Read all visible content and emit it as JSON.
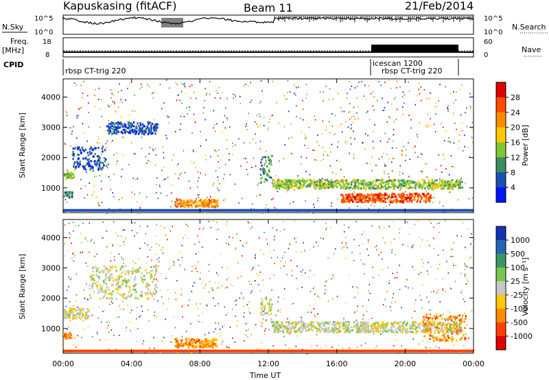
{
  "header": {
    "station": "Kapuskasing (fitACF)",
    "beam": "Beam 11",
    "date": "21/Feb/2014"
  },
  "panels": {
    "nsky": {
      "label": "N.Sky",
      "ticks_left": [
        "10^5",
        "10^0"
      ],
      "right_label": "N.Search",
      "ticks_right": [
        "10^5",
        "10^0"
      ]
    },
    "freq": {
      "label_top": "Freq.",
      "label_bottom": "[MHz]",
      "ticks_left": [
        "18",
        "8"
      ],
      "right_label": "Nave",
      "ticks_right": [
        "60",
        "0"
      ]
    },
    "cpid": {
      "label": "CPID",
      "segments": [
        {
          "text": "rbsp CT-trig 220",
          "start_h": 0,
          "end_h": 18.2
        },
        {
          "text": "icescan 1200",
          "start_h": 18.2,
          "end_h": 23.0
        },
        {
          "text": "rbsp CT-trig 220",
          "start_h": 18.2,
          "end_h": 23.0
        }
      ]
    }
  },
  "colorbars": {
    "power": {
      "title": "Power [dB]",
      "labels": [
        "28",
        "24",
        "20",
        "16",
        "12",
        "8",
        "4"
      ],
      "colors": [
        "#e00000",
        "#ff4a00",
        "#ff8c00",
        "#ffc800",
        "#7fc832",
        "#3c8c64",
        "#1e50b4",
        "#0014ff"
      ]
    },
    "velocity": {
      "title": "Velocity [m s⁻¹]",
      "labels": [
        "1000",
        "500",
        "100",
        "25",
        "-25",
        "-100",
        "-500",
        "-1000"
      ],
      "colors": [
        "#1432b4",
        "#2864b4",
        "#3c9664",
        "#78c850",
        "#c8c8c8",
        "#ffc800",
        "#ff8c00",
        "#ff4000",
        "#e00000"
      ]
    }
  },
  "chart_data": [
    {
      "type": "heatmap",
      "name": "power",
      "ylabel": "Slant Range [km]",
      "ylim": [
        180,
        4600
      ],
      "yticks": [
        1000,
        2000,
        3000,
        4000
      ],
      "xlim": [
        0,
        24
      ],
      "xticks": [
        "00:00",
        "04:00",
        "08:00",
        "12:00",
        "16:00",
        "20:00",
        "00:00"
      ],
      "features": [
        {
          "t0": 0.0,
          "t1": 0.5,
          "r0": 700,
          "r1": 900,
          "level": 5
        },
        {
          "t0": 0.0,
          "t1": 0.6,
          "r0": 1350,
          "r1": 1550,
          "level": 4
        },
        {
          "t0": 0.5,
          "t1": 2.5,
          "r0": 1600,
          "r1": 2400,
          "level": 6
        },
        {
          "t0": 2.5,
          "t1": 5.5,
          "r0": 2800,
          "r1": 3200,
          "level": 6
        },
        {
          "t0": 6.5,
          "t1": 9.0,
          "r0": 400,
          "r1": 650,
          "level": 2
        },
        {
          "t0": 11.5,
          "t1": 12.2,
          "r0": 1200,
          "r1": 2100,
          "level": 5
        },
        {
          "t0": 12.2,
          "t1": 23.3,
          "r0": 1000,
          "r1": 1300,
          "level": 4
        },
        {
          "t0": 16.2,
          "t1": 21.5,
          "r0": 550,
          "r1": 850,
          "level": 1
        }
      ]
    },
    {
      "type": "heatmap",
      "name": "velocity",
      "ylabel": "Slant Range [km]",
      "xlabel": "Time UT",
      "ylim": [
        180,
        4600
      ],
      "yticks": [
        1000,
        2000,
        3000,
        4000
      ],
      "xlim": [
        0,
        24
      ],
      "xticks": [
        "00:00",
        "04:00",
        "08:00",
        "12:00",
        "16:00",
        "20:00",
        "00:00"
      ],
      "features": [
        {
          "t0": 0.0,
          "t1": 0.5,
          "r0": 700,
          "r1": 900,
          "level": 6
        },
        {
          "t0": 0.0,
          "t1": 1.5,
          "r0": 1350,
          "r1": 1700,
          "level": 4
        },
        {
          "t0": 1.5,
          "t1": 5.5,
          "r0": 2000,
          "r1": 3100,
          "level": 4
        },
        {
          "t0": 6.5,
          "t1": 9.0,
          "r0": 400,
          "r1": 700,
          "level": 6
        },
        {
          "t0": 11.5,
          "t1": 12.2,
          "r0": 1200,
          "r1": 2100,
          "level": 4
        },
        {
          "t0": 12.2,
          "t1": 23.3,
          "r0": 900,
          "r1": 1250,
          "level": 4
        },
        {
          "t0": 21.0,
          "t1": 23.5,
          "r0": 600,
          "r1": 1500,
          "level": 6
        }
      ]
    }
  ]
}
